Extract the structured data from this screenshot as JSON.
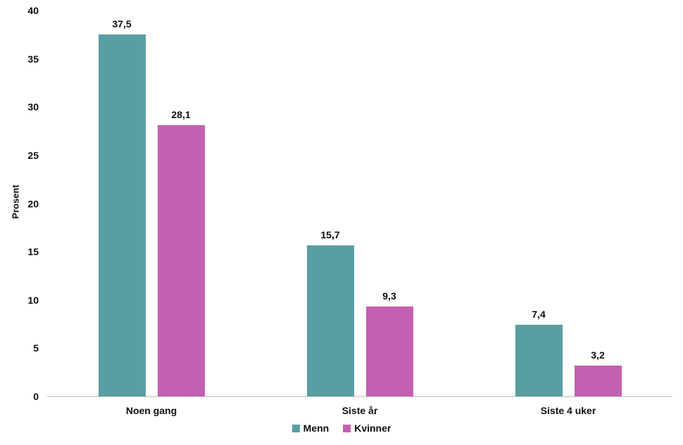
{
  "chart_data": {
    "type": "bar",
    "title": "",
    "categories": [
      "Noen gang",
      "Siste år",
      "Siste 4 uker"
    ],
    "series": [
      {
        "name": "Menn",
        "color": "#599ea3",
        "values": [
          37.5,
          15.7,
          7.4
        ],
        "value_labels": [
          "37,5",
          "15,7",
          "7,4"
        ]
      },
      {
        "name": "Kvinner",
        "color": "#c360b1",
        "values": [
          28.1,
          9.3,
          3.2
        ],
        "value_labels": [
          "28,1",
          "9,3",
          "3,2"
        ]
      }
    ],
    "xlabel": "",
    "ylabel": "Prosent",
    "ylim": [
      0,
      40
    ],
    "yticks": [
      "0",
      "5",
      "10",
      "15",
      "20",
      "25",
      "30",
      "35",
      "40"
    ],
    "grid": false,
    "legend_position": "bottom",
    "decimal_separator": ",",
    "axis_line_color": "#d9d9d9",
    "text_color": "#0d0d0d",
    "background_color": "#ffffff"
  }
}
